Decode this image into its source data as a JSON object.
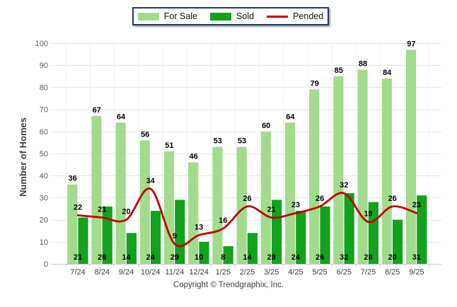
{
  "footer": {
    "copyright": "Copyright © Trendgraphix, Inc."
  },
  "legend": {
    "border_color": "#1F3864",
    "position": "top-center"
  },
  "chart_data": {
    "type": "bar",
    "subtype": "grouped-bars-with-smooth-line-overlay",
    "title": "",
    "xlabel": "",
    "ylabel": "Number of Homes",
    "ylim": [
      0,
      100
    ],
    "yticks": [
      0,
      10,
      20,
      30,
      40,
      50,
      60,
      70,
      80,
      90,
      100
    ],
    "grid": true,
    "legend_position": "top-center",
    "value_labels": true,
    "categories": [
      "7/24",
      "8/24",
      "9/24",
      "10/24",
      "11/24",
      "12/24",
      "1/25",
      "2/25",
      "3/25",
      "4/25",
      "5/25",
      "6/25",
      "7/25",
      "8/25",
      "9/25"
    ],
    "series": [
      {
        "name": "For Sale",
        "type": "bar",
        "color": "#A2DB8C",
        "values": [
          36,
          67,
          64,
          56,
          51,
          46,
          53,
          53,
          60,
          64,
          79,
          85,
          88,
          84,
          97
        ]
      },
      {
        "name": "Sold",
        "type": "bar",
        "color": "#12A21D",
        "values": [
          21,
          26,
          14,
          24,
          29,
          10,
          8,
          14,
          29,
          24,
          26,
          32,
          28,
          20,
          31
        ]
      },
      {
        "name": "Pended",
        "type": "line",
        "color": "#C00000",
        "values": [
          22,
          21,
          20,
          34,
          9,
          13,
          16,
          26,
          21,
          23,
          26,
          32,
          19,
          26,
          23
        ]
      }
    ],
    "colors": {
      "gridline": "#E7E7E7",
      "vertical_gridline": "#F1F1F1",
      "axis_line": "#C8C8C8",
      "y_tick_text": "#595959",
      "x_tick_text": "#3A3A3A",
      "value_label_text": "#000000",
      "axis_title_text": "#3F3F3F"
    }
  }
}
